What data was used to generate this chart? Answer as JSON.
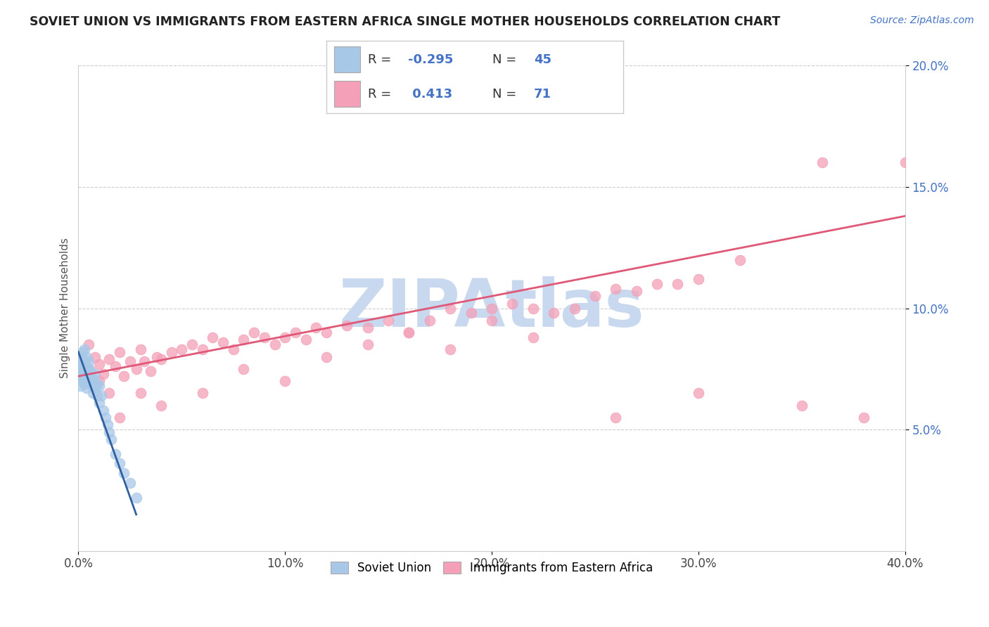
{
  "title": "SOVIET UNION VS IMMIGRANTS FROM EASTERN AFRICA SINGLE MOTHER HOUSEHOLDS CORRELATION CHART",
  "source": "Source: ZipAtlas.com",
  "ylabel": "Single Mother Households",
  "legend_label1": "Soviet Union",
  "legend_label2": "Immigrants from Eastern Africa",
  "R1": -0.295,
  "N1": 45,
  "R2": 0.413,
  "N2": 71,
  "xlim": [
    0.0,
    0.4
  ],
  "ylim": [
    0.0,
    0.2
  ],
  "xticks": [
    0.0,
    0.1,
    0.2,
    0.3,
    0.4
  ],
  "yticks": [
    0.05,
    0.1,
    0.15,
    0.2
  ],
  "xticklabels": [
    "0.0%",
    "10.0%",
    "20.0%",
    "30.0%",
    "40.0%"
  ],
  "yticklabels": [
    "5.0%",
    "10.0%",
    "15.0%",
    "20.0%"
  ],
  "color_blue": "#a8c8e8",
  "color_pink": "#f4a0b8",
  "line_blue": "#3060a0",
  "line_pink": "#e05878",
  "watermark": "ZIPAtlas",
  "watermark_color": "#c8d8ee",
  "blue_x": [
    0.001,
    0.001,
    0.001,
    0.001,
    0.002,
    0.002,
    0.002,
    0.002,
    0.002,
    0.002,
    0.003,
    0.003,
    0.003,
    0.003,
    0.003,
    0.004,
    0.004,
    0.004,
    0.004,
    0.005,
    0.005,
    0.005,
    0.006,
    0.006,
    0.006,
    0.007,
    0.007,
    0.007,
    0.008,
    0.008,
    0.009,
    0.009,
    0.01,
    0.01,
    0.011,
    0.012,
    0.013,
    0.014,
    0.015,
    0.016,
    0.018,
    0.02,
    0.022,
    0.025,
    0.028
  ],
  "blue_y": [
    0.075,
    0.08,
    0.072,
    0.068,
    0.079,
    0.076,
    0.082,
    0.073,
    0.077,
    0.07,
    0.083,
    0.074,
    0.078,
    0.071,
    0.069,
    0.076,
    0.073,
    0.08,
    0.067,
    0.075,
    0.071,
    0.078,
    0.074,
    0.069,
    0.072,
    0.071,
    0.068,
    0.065,
    0.073,
    0.067,
    0.069,
    0.064,
    0.068,
    0.061,
    0.064,
    0.058,
    0.055,
    0.052,
    0.049,
    0.046,
    0.04,
    0.036,
    0.032,
    0.028,
    0.022
  ],
  "pink_x": [
    0.005,
    0.008,
    0.01,
    0.012,
    0.015,
    0.018,
    0.02,
    0.022,
    0.025,
    0.028,
    0.03,
    0.032,
    0.035,
    0.038,
    0.04,
    0.045,
    0.05,
    0.055,
    0.06,
    0.065,
    0.07,
    0.075,
    0.08,
    0.085,
    0.09,
    0.095,
    0.1,
    0.105,
    0.11,
    0.115,
    0.12,
    0.13,
    0.14,
    0.15,
    0.16,
    0.17,
    0.18,
    0.19,
    0.2,
    0.21,
    0.22,
    0.23,
    0.24,
    0.25,
    0.26,
    0.27,
    0.28,
    0.29,
    0.3,
    0.32,
    0.005,
    0.01,
    0.015,
    0.02,
    0.03,
    0.04,
    0.06,
    0.08,
    0.1,
    0.12,
    0.14,
    0.16,
    0.18,
    0.2,
    0.22,
    0.26,
    0.3,
    0.35,
    0.38,
    0.4,
    0.36
  ],
  "pink_y": [
    0.075,
    0.08,
    0.077,
    0.073,
    0.079,
    0.076,
    0.082,
    0.072,
    0.078,
    0.075,
    0.083,
    0.078,
    0.074,
    0.08,
    0.079,
    0.082,
    0.083,
    0.085,
    0.083,
    0.088,
    0.086,
    0.083,
    0.087,
    0.09,
    0.088,
    0.085,
    0.088,
    0.09,
    0.087,
    0.092,
    0.09,
    0.093,
    0.092,
    0.095,
    0.09,
    0.095,
    0.1,
    0.098,
    0.1,
    0.102,
    0.1,
    0.098,
    0.1,
    0.105,
    0.108,
    0.107,
    0.11,
    0.11,
    0.112,
    0.12,
    0.085,
    0.07,
    0.065,
    0.055,
    0.065,
    0.06,
    0.065,
    0.075,
    0.07,
    0.08,
    0.085,
    0.09,
    0.083,
    0.095,
    0.088,
    0.055,
    0.065,
    0.06,
    0.055,
    0.16,
    0.16
  ],
  "pink_line_x0": 0.0,
  "pink_line_x1": 0.4,
  "pink_line_y0": 0.072,
  "pink_line_y1": 0.138,
  "blue_line_x0": 0.0,
  "blue_line_x1": 0.028,
  "blue_line_y0": 0.082,
  "blue_line_y1": 0.015
}
